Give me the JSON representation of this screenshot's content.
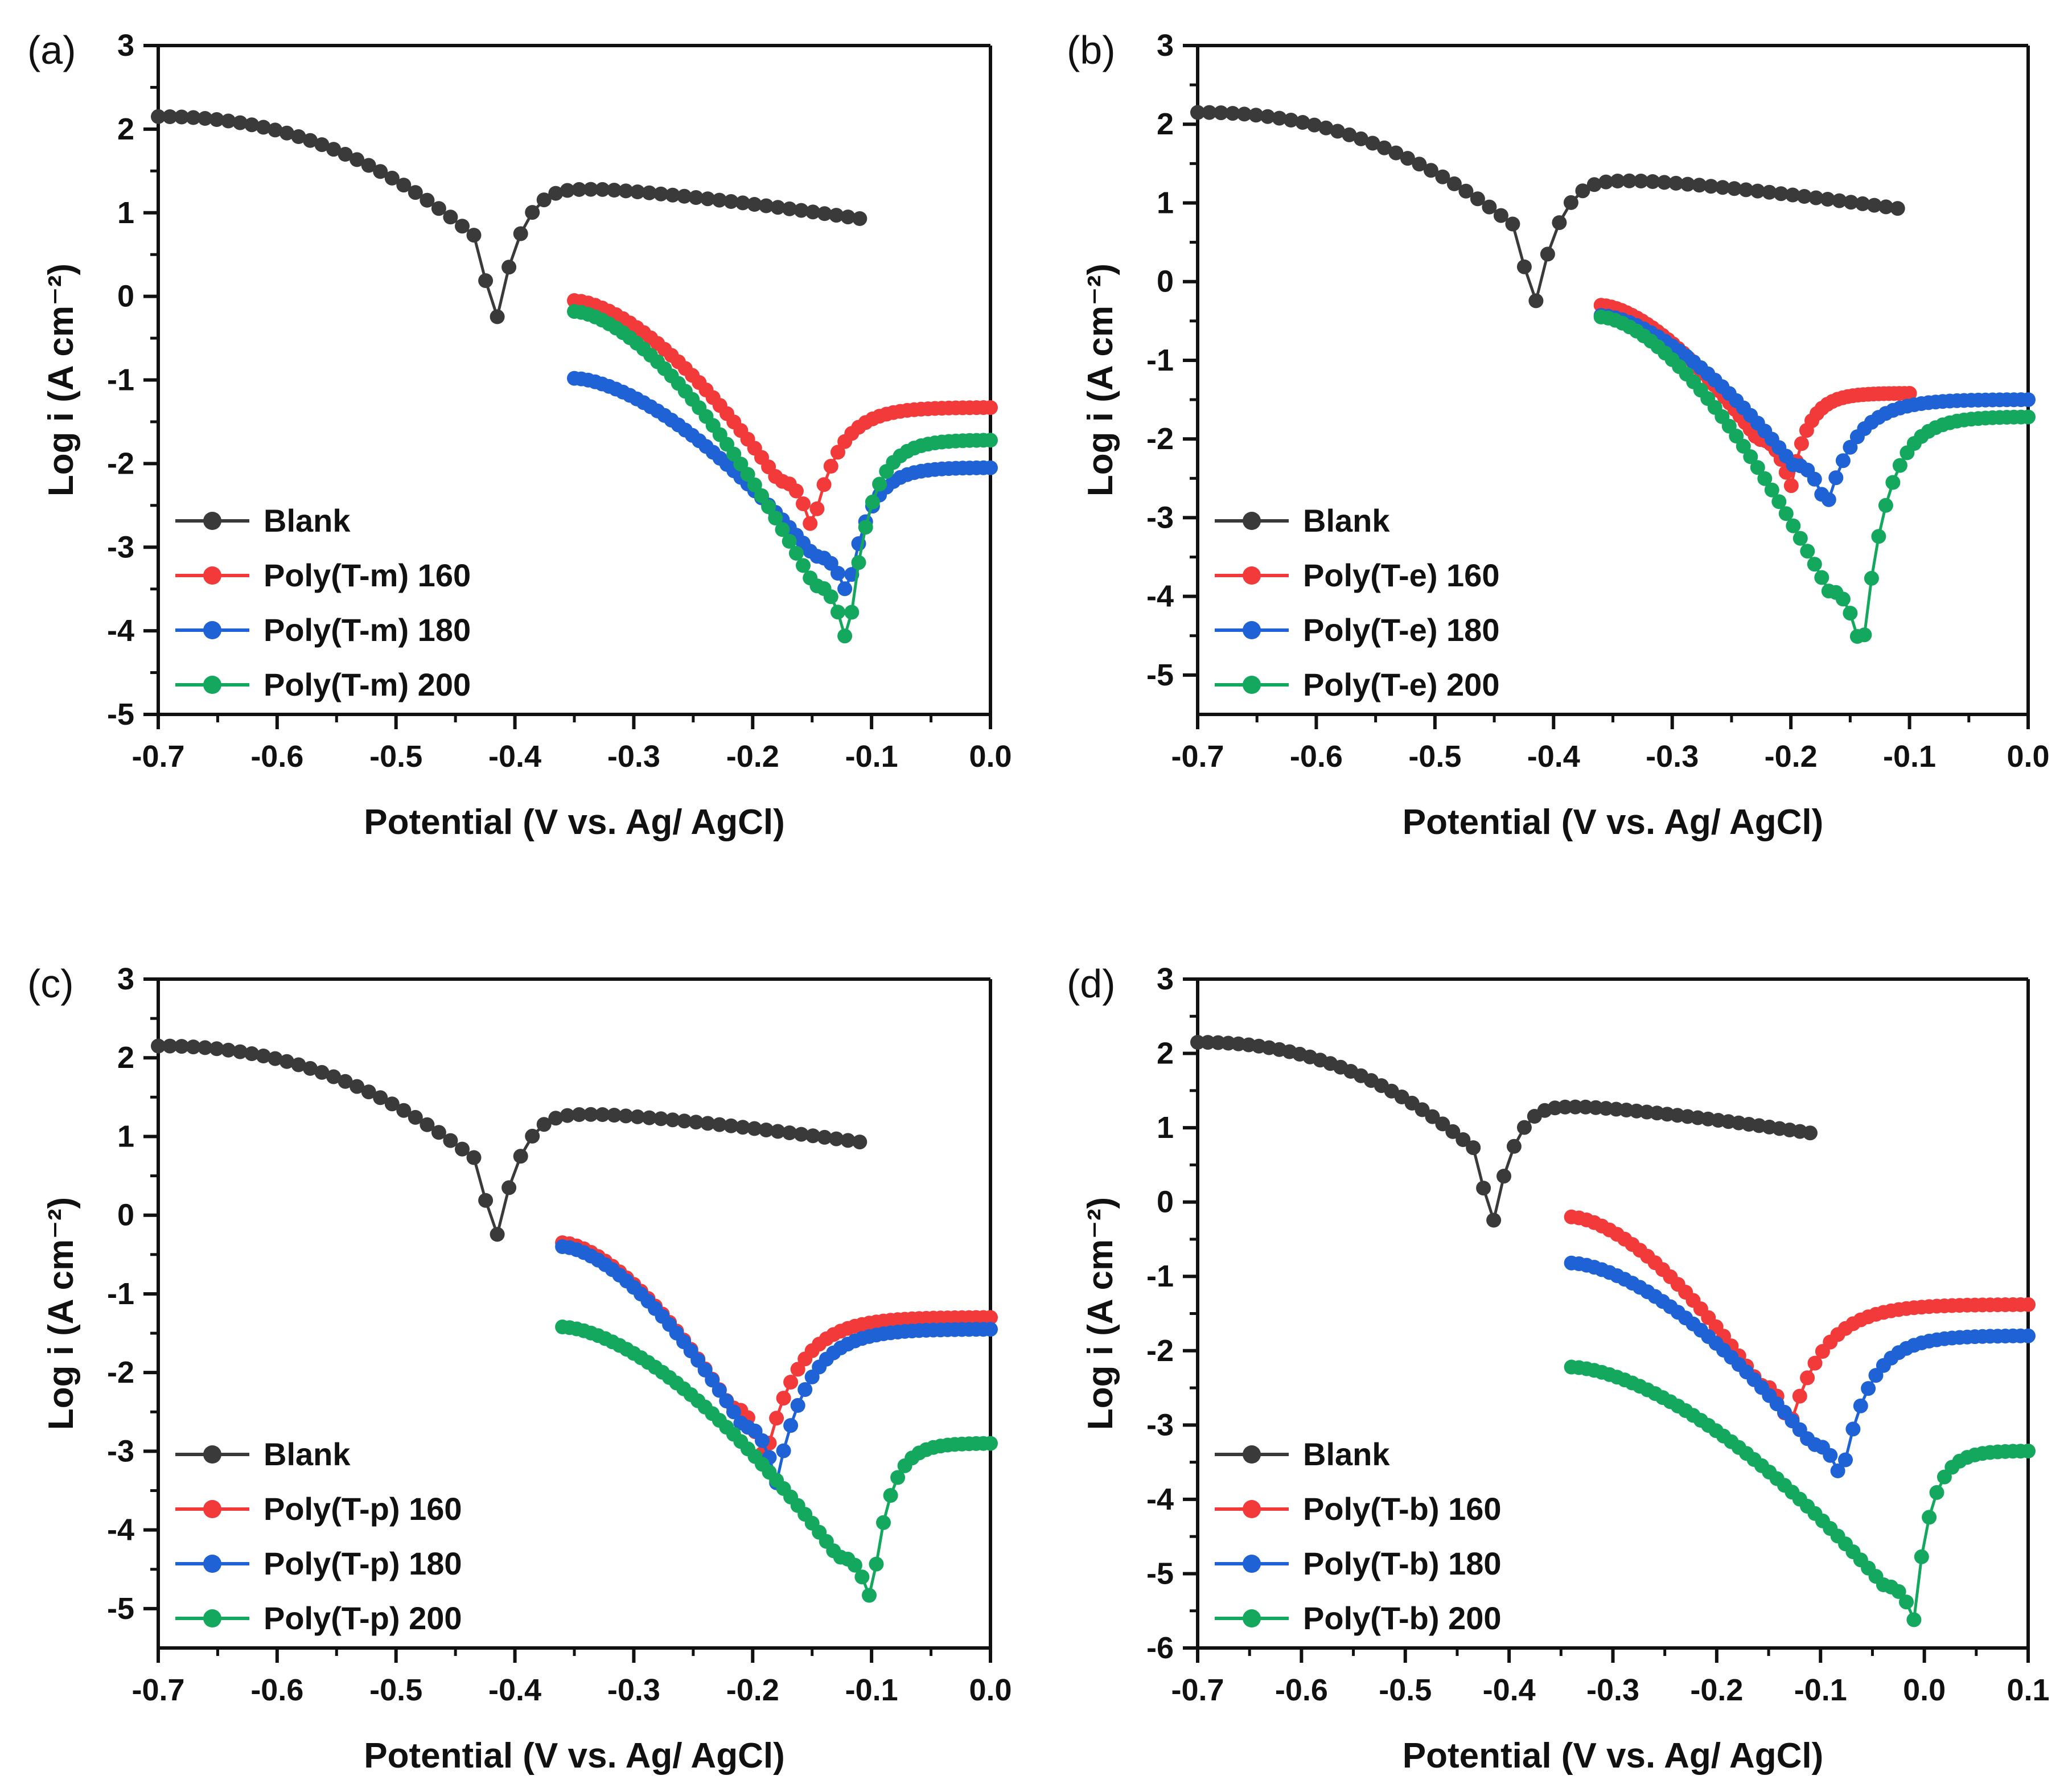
{
  "figure": {
    "panels": [
      "(a)",
      "(b)",
      "(c)",
      "(d)"
    ]
  },
  "colors": {
    "blank": "#3a3a3a",
    "s160": "#f23a3a",
    "s180": "#1f62d6",
    "s200": "#14a85f"
  },
  "chart_data": [
    {
      "type": "scatter",
      "panel_label": "(a)",
      "title": "",
      "xlabel": "Potential (V vs. Ag/ AgCl)",
      "ylabel": "Log i (A cm⁻²)",
      "xlim": [
        -0.7,
        0.0
      ],
      "ylim": [
        -5,
        3
      ],
      "xticks": [
        -0.7,
        -0.6,
        -0.5,
        -0.4,
        -0.3,
        -0.2,
        -0.1,
        0.0
      ],
      "xtick_labels": [
        "-0.7",
        "-0.6",
        "-0.5",
        "-0.4",
        "-0.3",
        "-0.2",
        "-0.1",
        "0.0"
      ],
      "yticks": [
        -5,
        -4,
        -3,
        -2,
        -1,
        0,
        1,
        2,
        3
      ],
      "ytick_labels": [
        "-5",
        "-4",
        "-3",
        "-2",
        "-1",
        "0",
        "1",
        "2",
        "3"
      ],
      "legend_position": "bottom-left",
      "grid": false,
      "series": [
        {
          "name": "Blank",
          "color": "#3a3a3a",
          "x_start": -0.7,
          "x_end": -0.11,
          "ecorr": -0.42,
          "log_icorr": -0.65,
          "anodic_peak": 1.28,
          "peak_potential": -0.33,
          "anodic_end": 0.93,
          "cathodic_start": 2.15
        },
        {
          "name": "Poly(T-m) 160",
          "color": "#f23a3a",
          "x_start": -0.35,
          "x_end": 0.0,
          "ecorr": -0.15,
          "log_icorr": -2.8,
          "anodic_end": -1.33,
          "cathodic_start": -0.05
        },
        {
          "name": "Poly(T-m) 180",
          "color": "#1f62d6",
          "x_start": -0.35,
          "x_end": 0.0,
          "ecorr": -0.12,
          "log_icorr": -3.6,
          "anodic_end": -2.05,
          "cathodic_start": -0.98
        },
        {
          "name": "Poly(T-m) 200",
          "color": "#14a85f",
          "x_start": -0.35,
          "x_end": 0.0,
          "ecorr": -0.12,
          "log_icorr": -4.22,
          "anodic_end": -1.72,
          "cathodic_start": -0.18
        }
      ]
    },
    {
      "type": "scatter",
      "panel_label": "(b)",
      "title": "",
      "xlabel": "Potential (V vs. Ag/ AgCl)",
      "ylabel": "Log i (A cm⁻²)",
      "xlim": [
        -0.7,
        0.0
      ],
      "ylim": [
        -5.5,
        3
      ],
      "xticks": [
        -0.7,
        -0.6,
        -0.5,
        -0.4,
        -0.3,
        -0.2,
        -0.1,
        0.0
      ],
      "xtick_labels": [
        "-0.7",
        "-0.6",
        "-0.5",
        "-0.4",
        "-0.3",
        "-0.2",
        "-0.1",
        "0.0"
      ],
      "yticks": [
        -5,
        -4,
        -3,
        -2,
        -1,
        0,
        1,
        2,
        3
      ],
      "ytick_labels": [
        "-5",
        "-4",
        "-3",
        "-2",
        "-1",
        "0",
        "1",
        "2",
        "3"
      ],
      "legend_position": "bottom-left",
      "grid": false,
      "series": [
        {
          "name": "Blank",
          "color": "#3a3a3a",
          "x_start": -0.7,
          "x_end": -0.11,
          "ecorr": -0.42,
          "log_icorr": -0.65,
          "anodic_peak": 1.28,
          "peak_potential": -0.33,
          "anodic_end": 0.93,
          "cathodic_start": 2.15
        },
        {
          "name": "Poly(T-e) 160",
          "color": "#f23a3a",
          "x_start": -0.36,
          "x_end": -0.1,
          "ecorr": -0.2,
          "log_icorr": -2.62,
          "anodic_end": -1.42,
          "cathodic_start": -0.3
        },
        {
          "name": "Poly(T-e) 180",
          "color": "#1f62d6",
          "x_start": -0.36,
          "x_end": 0.0,
          "ecorr": -0.17,
          "log_icorr": -2.88,
          "anodic_end": -1.5,
          "cathodic_start": -0.43
        },
        {
          "name": "Poly(T-e) 200",
          "color": "#14a85f",
          "x_start": -0.36,
          "x_end": 0.0,
          "ecorr": -0.14,
          "log_icorr": -4.78,
          "anodic_end": -1.72,
          "cathodic_start": -0.45
        }
      ]
    },
    {
      "type": "scatter",
      "panel_label": "(c)",
      "title": "",
      "xlabel": "Potential (V vs. Ag/ AgCl)",
      "ylabel": "Log i (A cm⁻²)",
      "xlim": [
        -0.7,
        0.0
      ],
      "ylim": [
        -5.5,
        3
      ],
      "xticks": [
        -0.7,
        -0.6,
        -0.5,
        -0.4,
        -0.3,
        -0.2,
        -0.1,
        0.0
      ],
      "xtick_labels": [
        "-0.7",
        "-0.6",
        "-0.5",
        "-0.4",
        "-0.3",
        "-0.2",
        "-0.1",
        "0.0"
      ],
      "yticks": [
        -5,
        -4,
        -3,
        -2,
        -1,
        0,
        1,
        2,
        3
      ],
      "ytick_labels": [
        "-5",
        "-4",
        "-3",
        "-2",
        "-1",
        "0",
        "1",
        "2",
        "3"
      ],
      "legend_position": "bottom-left",
      "grid": false,
      "series": [
        {
          "name": "Blank",
          "color": "#3a3a3a",
          "x_start": -0.7,
          "x_end": -0.11,
          "ecorr": -0.42,
          "log_icorr": -0.65,
          "anodic_peak": 1.28,
          "peak_potential": -0.33,
          "anodic_end": 0.93,
          "cathodic_start": 2.15
        },
        {
          "name": "Poly(T-p) 160",
          "color": "#f23a3a",
          "x_start": -0.36,
          "x_end": 0.0,
          "ecorr": -0.19,
          "log_icorr": -3.15,
          "anodic_end": -1.3,
          "cathodic_start": -0.35
        },
        {
          "name": "Poly(T-p) 180",
          "color": "#1f62d6",
          "x_start": -0.36,
          "x_end": 0.0,
          "ecorr": -0.18,
          "log_icorr": -3.4,
          "anodic_end": -1.45,
          "cathodic_start": -0.4
        },
        {
          "name": "Poly(T-p) 200",
          "color": "#14a85f",
          "x_start": -0.36,
          "x_end": 0.0,
          "ecorr": -0.1,
          "log_icorr": -4.93,
          "anodic_end": -2.9,
          "cathodic_start": -1.42
        }
      ]
    },
    {
      "type": "scatter",
      "panel_label": "(d)",
      "title": "",
      "xlabel": "Potential (V vs. Ag/ AgCl)",
      "ylabel": "Log i (A cm⁻²)",
      "xlim": [
        -0.7,
        0.1
      ],
      "ylim": [
        -6,
        3
      ],
      "xticks": [
        -0.7,
        -0.6,
        -0.5,
        -0.4,
        -0.3,
        -0.2,
        -0.1,
        0.0,
        0.1
      ],
      "xtick_labels": [
        "-0.7",
        "-0.6",
        "-0.5",
        "-0.4",
        "-0.3",
        "-0.2",
        "-0.1",
        "0.0",
        "0.1"
      ],
      "yticks": [
        -6,
        -5,
        -4,
        -3,
        -2,
        -1,
        0,
        1,
        2,
        3
      ],
      "ytick_labels": [
        "-6",
        "-5",
        "-4",
        "-3",
        "-2",
        "-1",
        "0",
        "1",
        "2",
        "3"
      ],
      "legend_position": "bottom-left",
      "grid": false,
      "series": [
        {
          "name": "Blank",
          "color": "#3a3a3a",
          "x_start": -0.7,
          "x_end": -0.11,
          "ecorr": -0.42,
          "log_icorr": -0.65,
          "anodic_peak": 1.28,
          "peak_potential": -0.33,
          "anodic_end": 0.93,
          "cathodic_start": 2.15
        },
        {
          "name": "Poly(T-b) 160",
          "color": "#f23a3a",
          "x_start": -0.34,
          "x_end": 0.1,
          "ecorr": -0.13,
          "log_icorr": -3.05,
          "anodic_end": -1.38,
          "cathodic_start": -0.2
        },
        {
          "name": "Poly(T-b) 180",
          "color": "#1f62d6",
          "x_start": -0.34,
          "x_end": 0.1,
          "ecorr": -0.08,
          "log_icorr": -3.75,
          "anodic_end": -1.8,
          "cathodic_start": -0.82
        },
        {
          "name": "Poly(T-b) 200",
          "color": "#14a85f",
          "x_start": -0.34,
          "x_end": 0.1,
          "ecorr": -0.01,
          "log_icorr": -5.62,
          "anodic_end": -3.35,
          "cathodic_start": -2.22
        }
      ]
    }
  ]
}
